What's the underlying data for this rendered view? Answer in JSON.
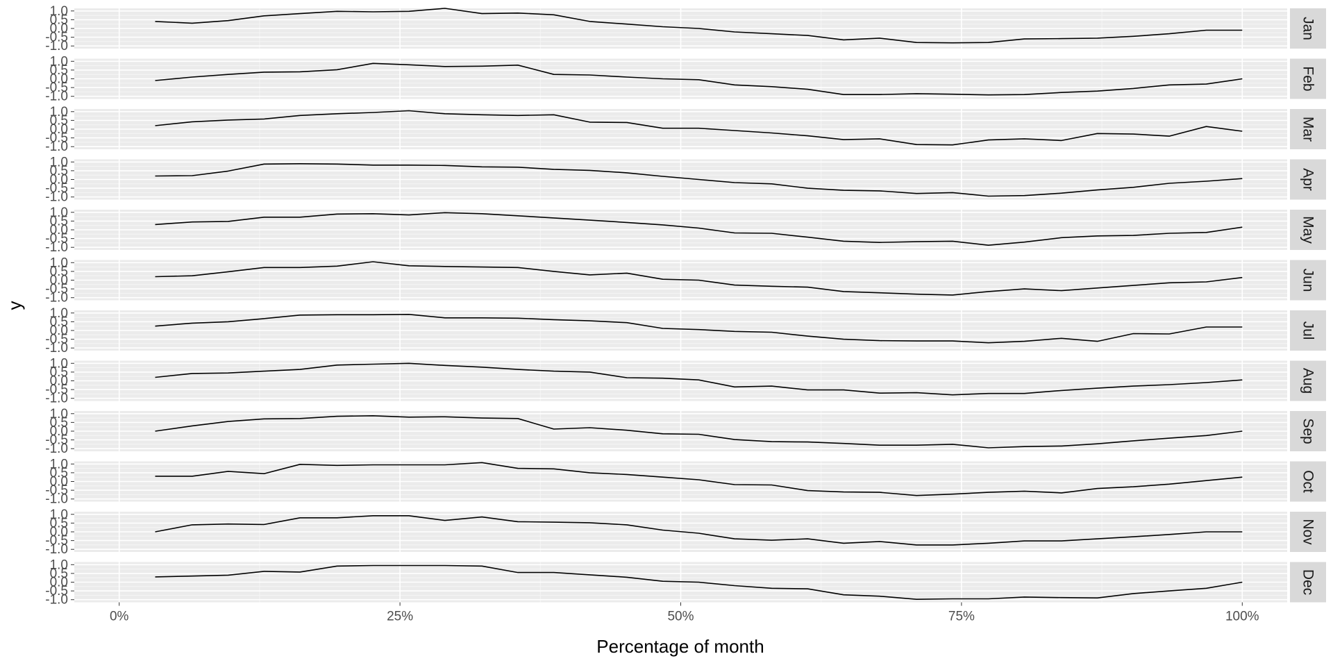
{
  "chart_data": {
    "type": "line",
    "facet": "rows",
    "xlabel": "Percentage of month",
    "ylabel": "y",
    "x_ticks": [
      "0%",
      "25%",
      "50%",
      "75%",
      "100%"
    ],
    "x_tick_values": [
      0,
      25,
      50,
      75,
      100
    ],
    "xlim": [
      -4,
      104
    ],
    "y_ticks": [
      "-1.0",
      "-0.5",
      "0.0",
      "0.5",
      "1.0"
    ],
    "y_tick_values": [
      -1.0,
      -0.5,
      0.0,
      0.5,
      1.0
    ],
    "ylim": [
      -1.15,
      1.15
    ],
    "grid": true,
    "x": [
      3.2,
      6.5,
      9.7,
      12.9,
      16.1,
      19.4,
      22.6,
      25.8,
      29.0,
      32.3,
      35.5,
      38.7,
      41.9,
      45.2,
      48.4,
      51.6,
      54.8,
      58.1,
      61.3,
      64.5,
      67.7,
      71.0,
      74.2,
      77.4,
      80.6,
      83.9,
      87.1,
      90.3,
      93.5,
      96.8,
      100.0
    ],
    "series": [
      {
        "panel": "Jan",
        "values": [
          0.4,
          0.3,
          0.45,
          0.72,
          0.85,
          0.98,
          0.95,
          0.98,
          1.15,
          0.85,
          0.88,
          0.78,
          0.4,
          0.25,
          0.1,
          0.0,
          -0.2,
          -0.3,
          -0.4,
          -0.65,
          -0.55,
          -0.8,
          -0.82,
          -0.8,
          -0.6,
          -0.58,
          -0.55,
          -0.45,
          -0.3,
          -0.1,
          -0.1
        ]
      },
      {
        "panel": "Feb",
        "values": [
          -0.1,
          0.1,
          0.25,
          0.38,
          0.4,
          0.52,
          0.88,
          0.8,
          0.7,
          0.72,
          0.78,
          0.25,
          0.22,
          0.1,
          0.0,
          -0.05,
          -0.35,
          -0.45,
          -0.6,
          -0.9,
          -0.9,
          -0.85,
          -0.88,
          -0.92,
          -0.9,
          -0.78,
          -0.7,
          -0.55,
          -0.35,
          -0.3,
          0.0
        ]
      },
      {
        "panel": "Mar",
        "values": [
          0.2,
          0.42,
          0.52,
          0.58,
          0.78,
          0.88,
          0.95,
          1.05,
          0.88,
          0.82,
          0.78,
          0.82,
          0.4,
          0.38,
          0.05,
          0.05,
          -0.08,
          -0.22,
          -0.38,
          -0.6,
          -0.55,
          -0.88,
          -0.9,
          -0.62,
          -0.55,
          -0.65,
          -0.25,
          -0.28,
          -0.4,
          0.15,
          -0.12
        ]
      },
      {
        "panel": "Apr",
        "values": [
          0.2,
          0.22,
          0.48,
          0.88,
          0.9,
          0.88,
          0.82,
          0.82,
          0.8,
          0.72,
          0.7,
          0.58,
          0.52,
          0.38,
          0.18,
          0.0,
          -0.18,
          -0.25,
          -0.5,
          -0.62,
          -0.65,
          -0.8,
          -0.75,
          -0.95,
          -0.92,
          -0.78,
          -0.6,
          -0.45,
          -0.22,
          -0.1,
          0.05
        ]
      },
      {
        "panel": "May",
        "values": [
          0.3,
          0.45,
          0.48,
          0.72,
          0.72,
          0.9,
          0.92,
          0.85,
          0.98,
          0.92,
          0.8,
          0.68,
          0.55,
          0.42,
          0.28,
          0.1,
          -0.18,
          -0.2,
          -0.42,
          -0.65,
          -0.72,
          -0.68,
          -0.65,
          -0.88,
          -0.7,
          -0.45,
          -0.35,
          -0.32,
          -0.2,
          -0.15,
          0.15
        ]
      },
      {
        "panel": "Jun",
        "values": [
          0.2,
          0.25,
          0.48,
          0.72,
          0.72,
          0.8,
          1.05,
          0.82,
          0.78,
          0.75,
          0.72,
          0.5,
          0.3,
          0.4,
          0.05,
          0.0,
          -0.28,
          -0.35,
          -0.4,
          -0.65,
          -0.72,
          -0.8,
          -0.85,
          -0.65,
          -0.5,
          -0.6,
          -0.45,
          -0.3,
          -0.15,
          -0.1,
          0.15
        ]
      },
      {
        "panel": "Jul",
        "values": [
          0.25,
          0.42,
          0.5,
          0.68,
          0.88,
          0.9,
          0.9,
          0.92,
          0.72,
          0.72,
          0.7,
          0.62,
          0.55,
          0.45,
          0.12,
          0.05,
          -0.05,
          -0.1,
          -0.32,
          -0.5,
          -0.58,
          -0.6,
          -0.6,
          -0.7,
          -0.62,
          -0.45,
          -0.62,
          -0.18,
          -0.2,
          0.2,
          0.2
        ]
      },
      {
        "panel": "Aug",
        "values": [
          0.2,
          0.42,
          0.45,
          0.55,
          0.65,
          0.9,
          0.95,
          1.0,
          0.88,
          0.78,
          0.65,
          0.55,
          0.5,
          0.18,
          0.15,
          0.05,
          -0.35,
          -0.3,
          -0.52,
          -0.52,
          -0.7,
          -0.68,
          -0.8,
          -0.72,
          -0.72,
          -0.55,
          -0.42,
          -0.3,
          -0.22,
          -0.1,
          0.05
        ]
      },
      {
        "panel": "Sep",
        "values": [
          0.0,
          0.3,
          0.55,
          0.7,
          0.72,
          0.85,
          0.88,
          0.8,
          0.82,
          0.75,
          0.72,
          0.12,
          0.2,
          0.05,
          -0.15,
          -0.18,
          -0.48,
          -0.6,
          -0.62,
          -0.7,
          -0.8,
          -0.8,
          -0.75,
          -0.95,
          -0.88,
          -0.85,
          -0.72,
          -0.55,
          -0.4,
          -0.25,
          0.0
        ]
      },
      {
        "panel": "Oct",
        "values": [
          0.3,
          0.3,
          0.58,
          0.45,
          0.98,
          0.92,
          0.95,
          0.95,
          0.95,
          1.08,
          0.75,
          0.72,
          0.5,
          0.4,
          0.25,
          0.1,
          -0.18,
          -0.2,
          -0.52,
          -0.6,
          -0.62,
          -0.8,
          -0.72,
          -0.62,
          -0.55,
          -0.65,
          -0.4,
          -0.3,
          -0.15,
          0.05,
          0.25
        ]
      },
      {
        "panel": "Nov",
        "values": [
          0.0,
          0.4,
          0.45,
          0.42,
          0.8,
          0.8,
          0.92,
          0.92,
          0.65,
          0.85,
          0.58,
          0.55,
          0.52,
          0.4,
          0.1,
          -0.08,
          -0.4,
          -0.48,
          -0.4,
          -0.65,
          -0.55,
          -0.75,
          -0.75,
          -0.65,
          -0.52,
          -0.52,
          -0.4,
          -0.28,
          -0.15,
          0.0,
          0.0
        ]
      },
      {
        "panel": "Dec",
        "values": [
          0.3,
          0.35,
          0.4,
          0.62,
          0.58,
          0.92,
          0.95,
          0.95,
          0.95,
          0.92,
          0.55,
          0.55,
          0.42,
          0.28,
          0.05,
          0.0,
          -0.2,
          -0.35,
          -0.38,
          -0.72,
          -0.8,
          -0.98,
          -0.95,
          -0.95,
          -0.85,
          -0.88,
          -0.9,
          -0.65,
          -0.5,
          -0.35,
          0.0
        ]
      }
    ]
  }
}
